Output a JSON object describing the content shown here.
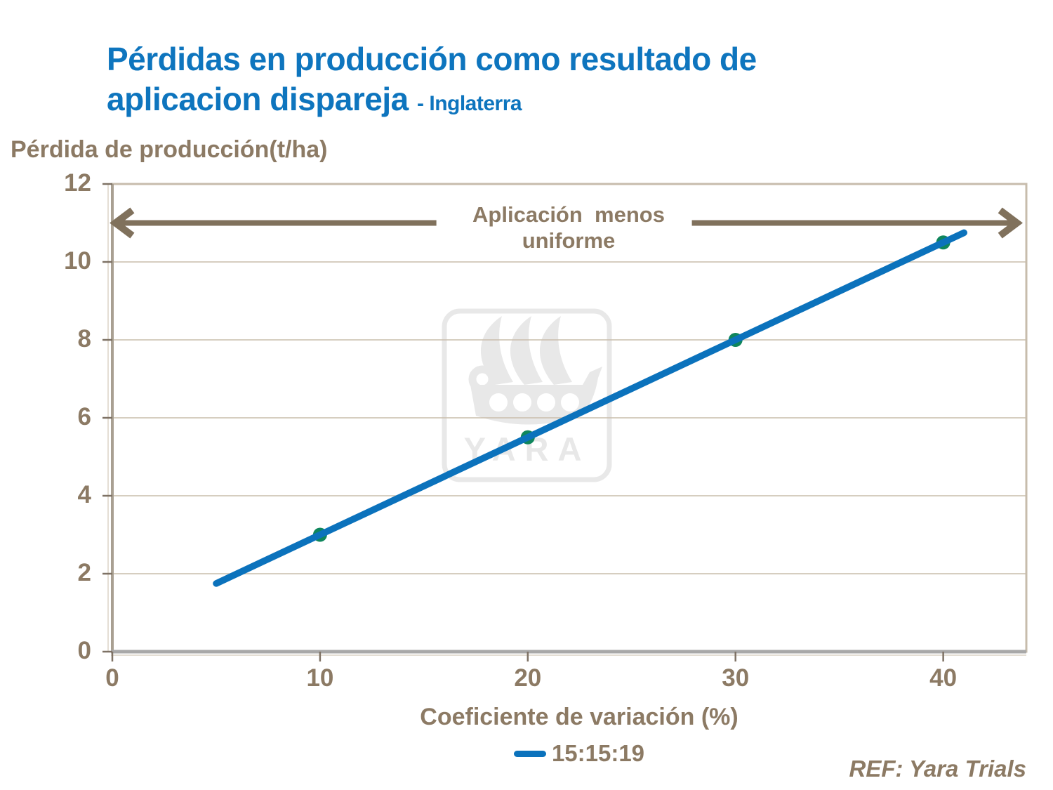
{
  "slide": {
    "title_line1": "Pérdidas en producción como resultado de",
    "title_line2": "aplicacion dispareja",
    "title_suffix": "- Inglaterra",
    "ref_text": "REF: Yara Trials"
  },
  "watermark_label": "YARA",
  "colors": {
    "title_blue": "#0E75BE",
    "text_brown": "#8C7A64",
    "arrow_brown": "#80715C",
    "line_blue": "#0B72BC",
    "marker_green": "#0F865C",
    "grid": "#C9BDAC",
    "axis": "#A9A092",
    "axis_gray": "#A8A8A8",
    "watermark": "#E8E8E8"
  },
  "chart_data": {
    "type": "line",
    "title": "Pérdidas en producción como resultado de aplicacion dispareja - Inglaterra",
    "xlabel": "Coeficiente de variación (%)",
    "ylabel": "Pérdida de producción(t/ha)",
    "xlim": [
      0,
      44
    ],
    "ylim": [
      0,
      12
    ],
    "x_ticks": [
      0,
      10,
      20,
      30,
      40
    ],
    "y_ticks": [
      0,
      2,
      4,
      6,
      8,
      10,
      12
    ],
    "grid": "horizontal",
    "legend_position": "bottom",
    "series": [
      {
        "name": "15:15:19",
        "x": [
          10,
          20,
          30,
          40
        ],
        "y": [
          3,
          5.5,
          8,
          10.5
        ],
        "line_extent": {
          "x": [
            5,
            41
          ],
          "y": [
            1.75,
            10.75
          ]
        }
      }
    ],
    "annotation": {
      "line1": "Aplicación  menos",
      "line2": "uniforme",
      "arrows": [
        {
          "x1": 15.6,
          "x2": 0.15,
          "y": 11.0
        },
        {
          "x1": 27.9,
          "x2": 43.55,
          "y": 11.0
        }
      ]
    }
  }
}
